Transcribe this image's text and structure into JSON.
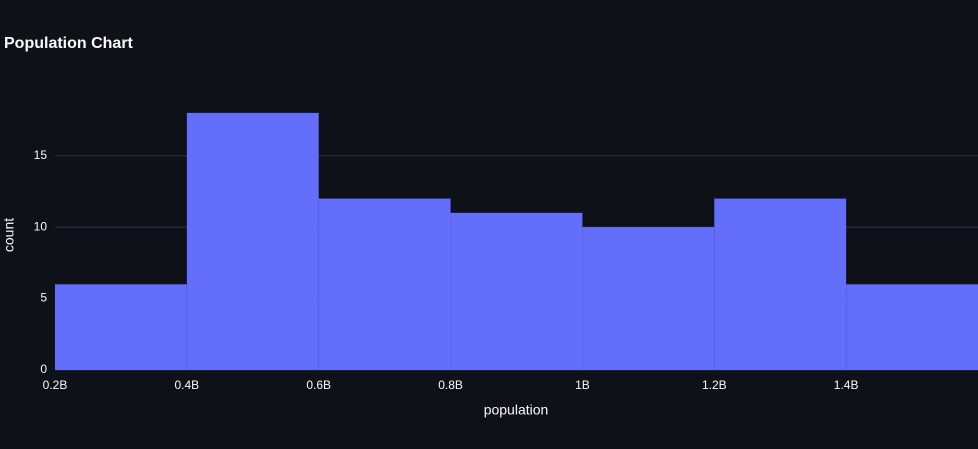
{
  "chart_data": {
    "type": "histogram",
    "title": "Population Chart",
    "x_label": "population",
    "y_label": "count",
    "bins": [
      200000000,
      400000000,
      600000000,
      800000000,
      1000000000,
      1200000000,
      1400000000,
      1600000000
    ],
    "values": [
      6,
      18,
      12,
      11,
      10,
      12,
      6
    ],
    "color": "#636efa",
    "xlim": [
      200000000,
      1600000000
    ],
    "xticks": [
      {
        "value": 200000000,
        "label": "0.2B"
      },
      {
        "value": 400000000,
        "label": "0.4B"
      },
      {
        "value": 600000000,
        "label": "0.6B"
      },
      {
        "value": 800000000,
        "label": "0.8B"
      },
      {
        "value": 1000000000,
        "label": "1B"
      },
      {
        "value": 1200000000,
        "label": "1.2B"
      },
      {
        "value": 1400000000,
        "label": "1.4B"
      }
    ],
    "ylim": [
      0,
      18.9
    ],
    "yticks": [
      0,
      5,
      10,
      15
    ],
    "grid": true
  }
}
